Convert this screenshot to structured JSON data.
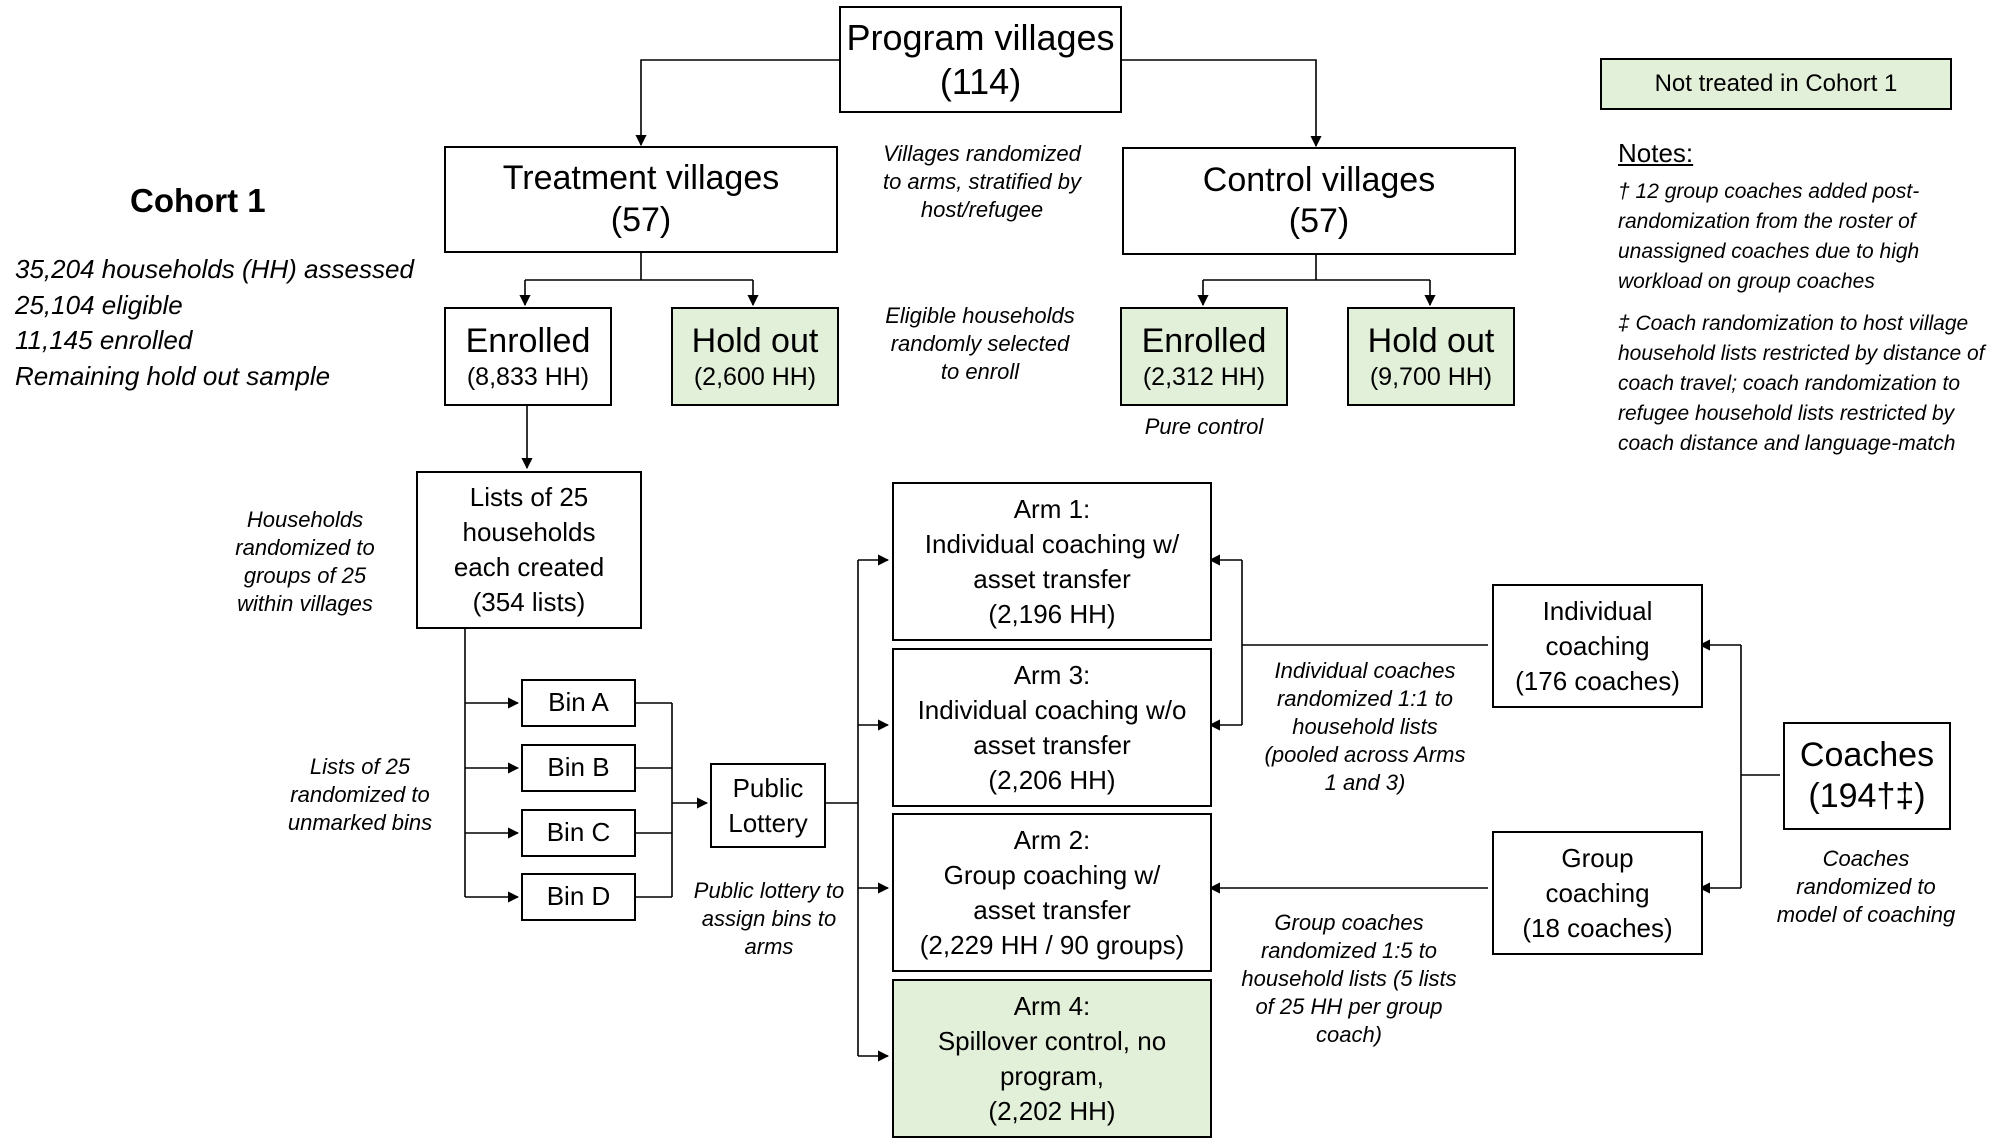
{
  "program": {
    "title": "Program villages",
    "count": "(114)"
  },
  "treatment": {
    "title": "Treatment villages",
    "count": "(57)"
  },
  "control": {
    "title": "Control villages",
    "count": "(57)"
  },
  "legend": {
    "label": "Not treated in Cohort 1",
    "color": "#e2efd9"
  },
  "cohort": {
    "title": "Cohort 1",
    "lines": [
      "35,204 households (HH) assessed",
      "25,104 eligible",
      "11,145 enrolled",
      "Remaining hold out sample"
    ]
  },
  "randomization_note": "Villages randomized to arms, stratified by host/refugee",
  "eligible_note": "Eligible households randomly selected to enroll",
  "treat_enrolled": {
    "title": "Enrolled",
    "count": "(8,833 HH)"
  },
  "treat_holdout": {
    "title": "Hold out",
    "count": "(2,600 HH)"
  },
  "ctrl_enrolled": {
    "title": "Enrolled",
    "count": "(2,312 HH)"
  },
  "ctrl_holdout": {
    "title": "Hold out",
    "count": "(9,700 HH)"
  },
  "pure_control": "Pure control",
  "notes": {
    "heading": "Notes:",
    "dagger": "† 12 group coaches added post-randomization from the roster of unassigned coaches due to high workload on group coaches",
    "ddagger": "‡ Coach randomization to host village household lists restricted by distance of coach travel; coach randomization to refugee household lists restricted by coach distance and language-match"
  },
  "lists": {
    "label": "Lists of 25 households each created",
    "count": "(354 lists)"
  },
  "households_note": "Households randomized to groups of 25 within villages",
  "bins": [
    "Bin A",
    "Bin B",
    "Bin C",
    "Bin D"
  ],
  "bins_note": "Lists of 25 randomized to unmarked bins",
  "lottery": {
    "label": "Public Lottery"
  },
  "lottery_note": "Public lottery to assign bins to arms",
  "arm1": {
    "title": "Arm 1:",
    "desc": "Individual coaching w/ asset transfer",
    "count": "(2,196 HH)"
  },
  "arm3": {
    "title": "Arm 3:",
    "desc": "Individual coaching w/o asset transfer",
    "count": "(2,206 HH)"
  },
  "arm2": {
    "title": "Arm 2:",
    "desc": "Group coaching w/ asset transfer",
    "count": "(2,229 HH / 90 groups)"
  },
  "arm4": {
    "title": "Arm 4:",
    "desc": "Spillover control, no program,",
    "count": "(2,202 HH)"
  },
  "indiv_coaching": {
    "label": "Individual coaching",
    "count": "(176 coaches)"
  },
  "group_coaching": {
    "label": "Group coaching",
    "count": "(18 coaches)"
  },
  "coaches": {
    "label": "Coaches",
    "count": "(194†‡)"
  },
  "indiv_note": "Individual coaches randomized 1:1 to household lists (pooled across Arms 1 and 3)",
  "group_note": "Group coaches randomized 1:5 to household lists (5 lists of 25 HH per group coach)",
  "coaches_note": "Coaches randomized to model of coaching"
}
